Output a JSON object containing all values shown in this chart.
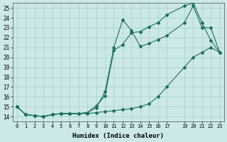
{
  "xlabel": "Humidex (Indice chaleur)",
  "bg_color": "#cce8e8",
  "line_color": "#1a7060",
  "grid_color": "#aad4d0",
  "xlim": [
    -0.5,
    23.5
  ],
  "ylim": [
    13.5,
    25.5
  ],
  "xticks": [
    0,
    1,
    2,
    3,
    4,
    5,
    6,
    7,
    8,
    9,
    10,
    11,
    12,
    13,
    14,
    15,
    16,
    17,
    19,
    20,
    21,
    22,
    23
  ],
  "yticks": [
    14,
    15,
    16,
    17,
    18,
    19,
    20,
    21,
    22,
    23,
    24,
    25
  ],
  "line1_x": [
    0,
    1,
    2,
    3,
    4,
    5,
    6,
    7,
    8,
    9,
    10,
    11,
    12,
    13,
    14,
    15,
    16,
    17,
    19,
    20,
    21,
    22,
    23
  ],
  "line1_y": [
    15.0,
    14.2,
    14.1,
    14.0,
    14.2,
    14.3,
    14.3,
    14.3,
    14.4,
    14.9,
    16.5,
    21.0,
    23.8,
    22.7,
    21.1,
    21.4,
    21.8,
    22.2,
    23.5,
    25.2,
    23.0,
    23.0,
    20.5
  ],
  "line2_x": [
    0,
    1,
    2,
    3,
    4,
    5,
    6,
    7,
    8,
    9,
    10,
    11,
    12,
    13,
    14,
    15,
    16,
    17,
    19,
    20,
    21,
    22,
    23
  ],
  "line2_y": [
    15.0,
    14.2,
    14.1,
    14.0,
    14.2,
    14.3,
    14.3,
    14.3,
    14.4,
    15.1,
    16.1,
    20.7,
    21.3,
    22.5,
    22.6,
    23.1,
    23.5,
    24.3,
    25.2,
    25.5,
    23.5,
    21.7,
    20.5
  ],
  "line3_x": [
    0,
    1,
    2,
    3,
    4,
    5,
    6,
    7,
    8,
    9,
    10,
    11,
    12,
    13,
    14,
    15,
    16,
    17,
    19,
    20,
    21,
    22,
    23
  ],
  "line3_y": [
    15.0,
    14.2,
    14.1,
    14.0,
    14.2,
    14.3,
    14.3,
    14.3,
    14.3,
    14.4,
    14.5,
    14.6,
    14.7,
    14.8,
    15.0,
    15.3,
    16.0,
    17.0,
    19.0,
    20.0,
    20.5,
    21.0,
    20.5
  ]
}
